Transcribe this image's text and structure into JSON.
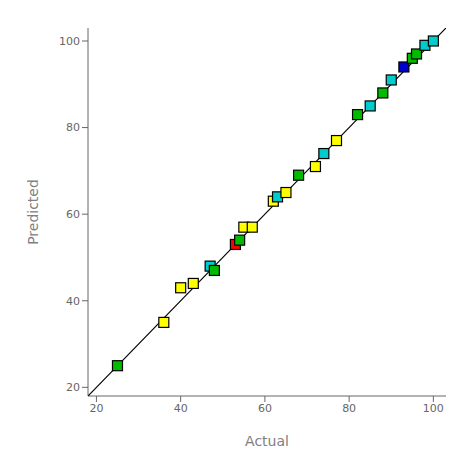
{
  "chart_data": {
    "type": "scatter",
    "xlabel": "Actual",
    "ylabel": "Predicted",
    "xlim": [
      18,
      103
    ],
    "ylim": [
      18,
      103
    ],
    "xticks": [
      20,
      40,
      60,
      80,
      100
    ],
    "yticks": [
      20,
      40,
      60,
      80,
      100
    ],
    "grid": false,
    "series": [
      {
        "type": "line",
        "x": [
          18,
          103
        ],
        "values": [
          18,
          103
        ],
        "color": "#000000"
      },
      {
        "type": "scatter",
        "marker": "square",
        "x": [
          25,
          36,
          40,
          43,
          47,
          48,
          53,
          54,
          55,
          57,
          62,
          63,
          65,
          68,
          72,
          74,
          77,
          82,
          85,
          88,
          90,
          93,
          95,
          96,
          98,
          100
        ],
        "values": [
          25,
          35,
          43,
          44,
          48,
          47,
          53,
          54,
          57,
          57,
          63,
          64,
          65,
          69,
          71,
          74,
          77,
          83,
          85,
          88,
          91,
          94,
          96,
          97,
          99,
          100
        ],
        "colors": [
          "#00bb00",
          "#ffff00",
          "#ffff00",
          "#ffff00",
          "#00cccc",
          "#00bb00",
          "#ff0000",
          "#00bb00",
          "#ffff00",
          "#ffff00",
          "#ffff00",
          "#00cccc",
          "#ffff00",
          "#00bb00",
          "#ffff00",
          "#00cccc",
          "#ffff00",
          "#00bb00",
          "#00cccc",
          "#00bb00",
          "#00cccc",
          "#0000cc",
          "#00bb00",
          "#00bb00",
          "#00cccc",
          "#00cccc"
        ]
      }
    ]
  }
}
